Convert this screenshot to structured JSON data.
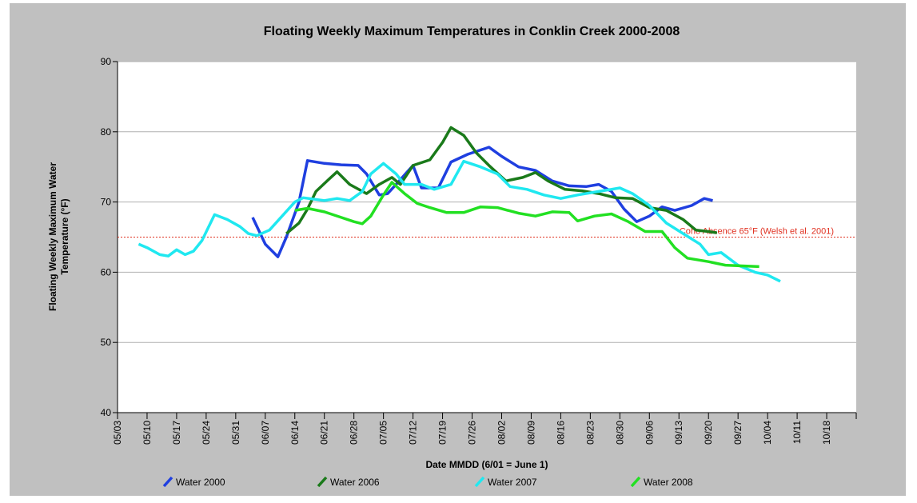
{
  "chart_data": {
    "type": "line",
    "title": "Floating Weekly Maximum Temperatures in Conklin Creek 2000-2008",
    "x_label": "Date MMDD (6/01 = June 1)",
    "y_label": "Floating Weekly Maximum Water Temperature (°F)",
    "xlim": [
      "05/03",
      "10/25"
    ],
    "xticks": [
      "05/03",
      "05/10",
      "05/17",
      "05/24",
      "05/31",
      "06/07",
      "06/14",
      "06/21",
      "06/28",
      "07/05",
      "07/12",
      "07/19",
      "07/26",
      "08/02",
      "08/09",
      "08/16",
      "08/23",
      "08/30",
      "09/06",
      "09/13",
      "09/20",
      "09/27",
      "10/04",
      "10/11",
      "10/18"
    ],
    "ylim": [
      40,
      90
    ],
    "yticks": [
      40,
      50,
      60,
      70,
      80,
      90
    ],
    "grid": true,
    "legend": "bottom",
    "reference_lines": [
      {
        "value": 65,
        "label": "Coho Absence 65°F (Welsh et al. 2001)",
        "color": "#e03020"
      }
    ],
    "series": [
      {
        "name": "Water 2000",
        "color": "#1f3fe0",
        "x": [
          "06/04",
          "06/07",
          "06/10",
          "06/12",
          "06/15",
          "06/17",
          "06/21",
          "06/25",
          "06/29",
          "07/01",
          "07/04",
          "07/06",
          "07/08",
          "07/12",
          "07/14",
          "07/18",
          "07/21",
          "07/25",
          "07/30",
          "08/02",
          "08/06",
          "08/10",
          "08/14",
          "08/18",
          "08/22",
          "08/25",
          "08/28",
          "08/31",
          "09/03",
          "09/06",
          "09/09",
          "09/12",
          "09/16",
          "09/19",
          "09/21"
        ],
        "values": [
          67.8,
          64,
          62.2,
          65,
          70,
          75.9,
          75.5,
          75.3,
          75.2,
          74,
          71,
          71.2,
          72.5,
          75.2,
          72,
          72,
          75.7,
          76.8,
          77.8,
          76.5,
          75,
          74.5,
          73,
          72.3,
          72.2,
          72.5,
          71.5,
          69,
          67.2,
          68,
          69.3,
          68.8,
          69.5,
          70.5,
          70.2
        ]
      },
      {
        "name": "Water 2006",
        "color": "#1a7a1a",
        "x": [
          "06/12",
          "06/15",
          "06/17",
          "06/19",
          "06/22",
          "06/24",
          "06/27",
          "07/01",
          "07/04",
          "07/07",
          "07/09",
          "07/12",
          "07/16",
          "07/19",
          "07/21",
          "07/24",
          "07/27",
          "07/30",
          "08/03",
          "08/07",
          "08/10",
          "08/13",
          "08/17",
          "08/21",
          "08/25",
          "08/29",
          "09/02",
          "09/06",
          "09/10",
          "09/14",
          "09/17",
          "09/20",
          "09/22"
        ],
        "values": [
          65.5,
          67,
          69,
          71.5,
          73.2,
          74.3,
          72.5,
          71.2,
          72.5,
          73.5,
          72.5,
          75.2,
          76,
          78.5,
          80.6,
          79.5,
          77,
          75.2,
          73,
          73.5,
          74.2,
          73,
          71.8,
          71.6,
          71.2,
          70.6,
          70.5,
          69.2,
          68.8,
          67.5,
          66,
          65.8,
          65.6
        ]
      },
      {
        "name": "Water 2007",
        "color": "#20e8f0",
        "x": [
          "05/08",
          "05/10",
          "05/13",
          "05/15",
          "05/17",
          "05/19",
          "05/21",
          "05/23",
          "05/26",
          "05/29",
          "06/01",
          "06/03",
          "06/05",
          "06/08",
          "06/11",
          "06/14",
          "06/16",
          "06/21",
          "06/24",
          "06/27",
          "06/30",
          "07/02",
          "07/05",
          "07/08",
          "07/10",
          "07/14",
          "07/17",
          "07/21",
          "07/24",
          "07/28",
          "08/01",
          "08/04",
          "08/08",
          "08/12",
          "08/16",
          "08/20",
          "08/25",
          "08/30",
          "09/02",
          "09/06",
          "09/10",
          "09/14",
          "09/18",
          "09/20",
          "09/23",
          "09/27",
          "10/01",
          "10/04",
          "10/07"
        ],
        "values": [
          64,
          63.5,
          62.5,
          62.3,
          63.2,
          62.5,
          63,
          64.5,
          68.2,
          67.5,
          66.5,
          65.5,
          65.2,
          66,
          68,
          70,
          70.6,
          70.2,
          70.5,
          70.2,
          71.5,
          74,
          75.5,
          74,
          72.5,
          72.5,
          71.8,
          72.5,
          75.8,
          75,
          74,
          72.2,
          71.8,
          71,
          70.5,
          71,
          71.5,
          72,
          71.2,
          69.5,
          67,
          65.5,
          64,
          62.5,
          62.8,
          61,
          60,
          59.6,
          58.7
        ]
      },
      {
        "name": "Water 2008",
        "color": "#22e022",
        "x": [
          "06/14",
          "06/17",
          "06/21",
          "06/25",
          "06/28",
          "06/30",
          "07/02",
          "07/05",
          "07/07",
          "07/10",
          "07/13",
          "07/16",
          "07/20",
          "07/24",
          "07/28",
          "08/01",
          "08/06",
          "08/10",
          "08/14",
          "08/18",
          "08/20",
          "08/24",
          "08/28",
          "09/01",
          "09/05",
          "09/09",
          "09/12",
          "09/15",
          "09/20",
          "09/24",
          "09/28",
          "10/02"
        ],
        "values": [
          68.8,
          69.1,
          68.6,
          67.8,
          67.2,
          66.9,
          68,
          71,
          72.8,
          71.2,
          69.8,
          69.2,
          68.5,
          68.5,
          69.3,
          69.2,
          68.4,
          68,
          68.6,
          68.5,
          67.3,
          68,
          68.3,
          67.2,
          65.8,
          65.8,
          63.5,
          62,
          61.5,
          61,
          60.9,
          60.8
        ]
      }
    ]
  }
}
